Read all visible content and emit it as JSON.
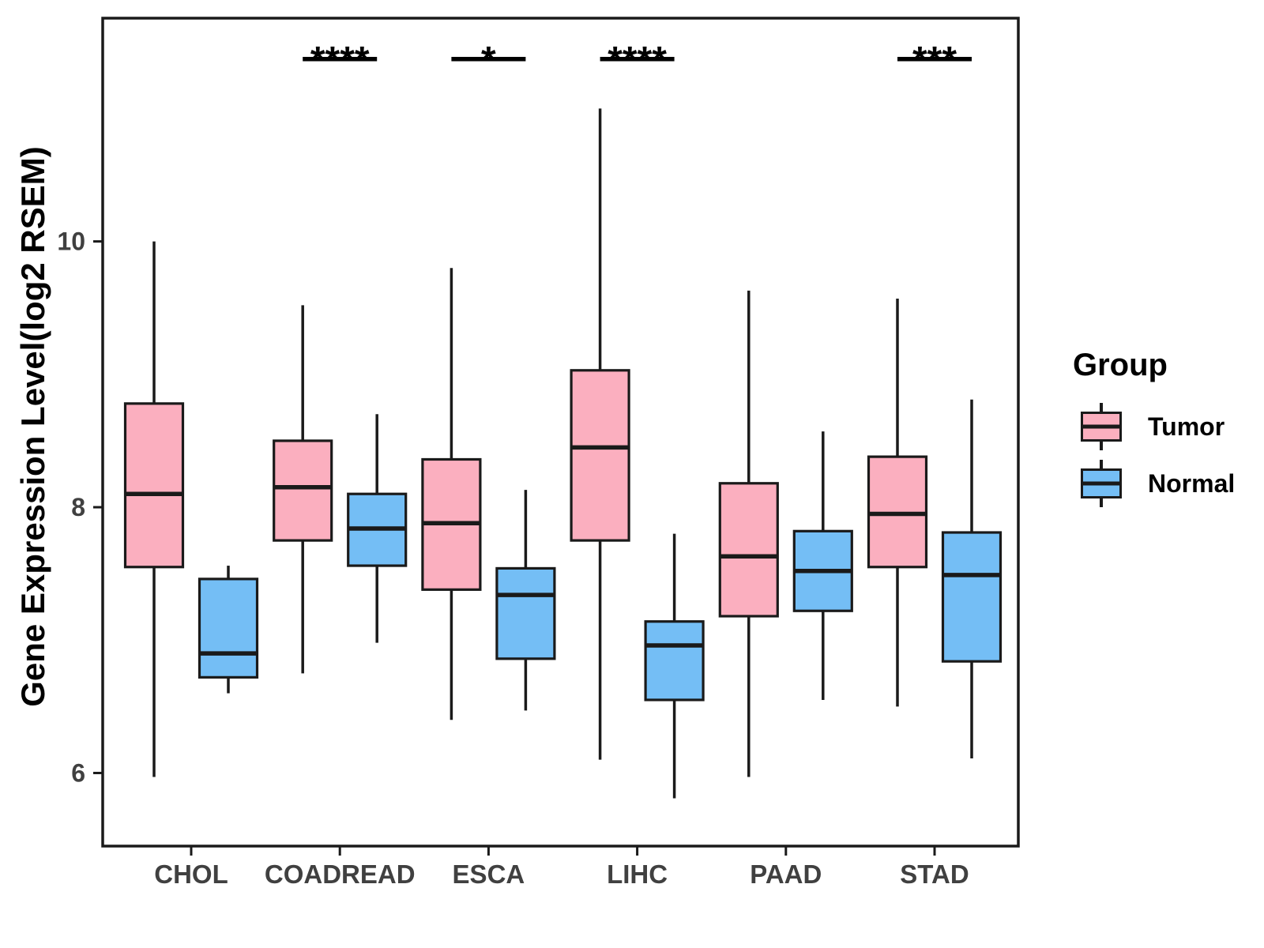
{
  "figure": {
    "background": "#ffffff"
  },
  "y_axis": {
    "title": "Gene Expression Level(log2 RSEM)",
    "tick_labels": [
      "10",
      "8",
      "6"
    ]
  },
  "x_axis": {
    "tick_labels": [
      "CHOL",
      "COADREAD",
      "ESCA",
      "LIHC",
      "PAAD",
      "STAD"
    ]
  },
  "legend": {
    "title": "Group",
    "items": [
      {
        "label": "Tumor",
        "color": "#FBAFBF"
      },
      {
        "label": "Normal",
        "color": "#74BEF5"
      }
    ]
  },
  "colors": {
    "tumor_fill": "#FBAFBF",
    "normal_fill": "#74BEF5",
    "line": "#1a1a1a",
    "axis_text": "#404040",
    "annotation": "#000000"
  },
  "chart_data": {
    "type": "boxplot",
    "title": "",
    "xlabel": "",
    "ylabel": "Gene Expression Level(log2 RSEM)",
    "categories": [
      "CHOL",
      "COADREAD",
      "ESCA",
      "LIHC",
      "PAAD",
      "STAD"
    ],
    "groups": [
      "Tumor",
      "Normal"
    ],
    "stats_order": [
      "whisker_low",
      "q1",
      "median",
      "q3",
      "whisker_high"
    ],
    "series": [
      {
        "name": "Tumor",
        "color": "#FBAFBF",
        "boxes": [
          [
            5.97,
            7.55,
            8.1,
            8.78,
            10.0
          ],
          [
            6.75,
            7.75,
            8.15,
            8.5,
            9.52
          ],
          [
            6.4,
            7.38,
            7.88,
            8.36,
            9.8
          ],
          [
            6.1,
            7.75,
            8.45,
            9.03,
            11.0
          ],
          [
            5.97,
            7.18,
            7.63,
            8.18,
            9.63
          ],
          [
            6.5,
            7.55,
            7.95,
            8.38,
            9.57
          ]
        ]
      },
      {
        "name": "Normal",
        "color": "#74BEF5",
        "boxes": [
          [
            6.6,
            6.72,
            6.9,
            7.46,
            7.56
          ],
          [
            6.98,
            7.56,
            7.84,
            8.1,
            8.7
          ],
          [
            6.47,
            6.86,
            7.34,
            7.54,
            8.13
          ],
          [
            5.81,
            6.55,
            6.96,
            7.14,
            7.8
          ],
          [
            6.55,
            7.22,
            7.52,
            7.82,
            8.57
          ],
          [
            6.11,
            6.84,
            7.49,
            7.81,
            8.81
          ]
        ]
      }
    ],
    "significance": [
      {
        "category": "COADREAD",
        "label": "****"
      },
      {
        "category": "ESCA",
        "label": "*"
      },
      {
        "category": "LIHC",
        "label": "****"
      },
      {
        "category": "STAD",
        "label": "***"
      }
    ],
    "ylim": [
      5.45,
      11.68
    ],
    "yticks": [
      6,
      8,
      10
    ],
    "grid": false,
    "legend_position": "right"
  }
}
